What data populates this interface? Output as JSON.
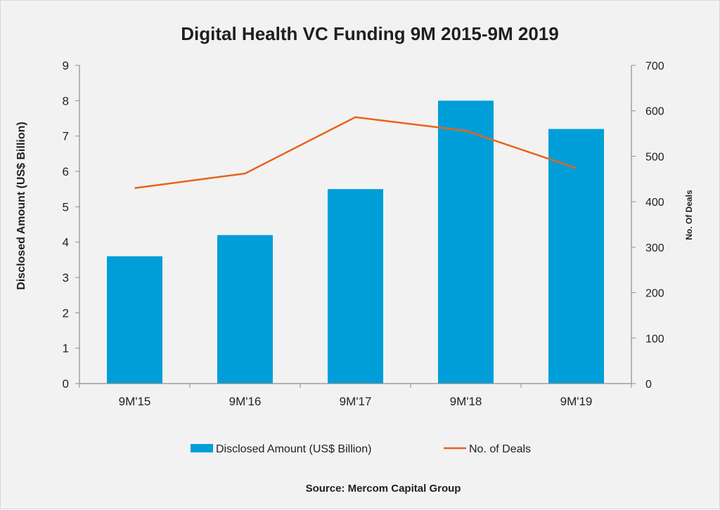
{
  "chart_data": {
    "type": "bar",
    "title": "Digital Health VC Funding 9M 2015-9M 2019",
    "categories": [
      "9M'15",
      "9M'16",
      "9M'17",
      "9M'18",
      "9M'19"
    ],
    "series": [
      {
        "name": "Disclosed Amount (US$ Billion)",
        "type": "bar",
        "axis": "left",
        "values": [
          3.6,
          4.2,
          5.5,
          8.0,
          7.2
        ],
        "color": "#009ed8"
      },
      {
        "name": "No. of Deals",
        "type": "line",
        "axis": "right",
        "values": [
          430,
          462,
          586,
          556,
          474
        ],
        "color": "#e8631c"
      }
    ],
    "ylabel": "Disclosed Amount (US$ Billion)",
    "ylabel_right": "No. Of Deals",
    "ylim": [
      0,
      9
    ],
    "ylim_right": [
      0,
      700
    ],
    "yticks": [
      "0",
      "1",
      "2",
      "3",
      "4",
      "5",
      "6",
      "7",
      "8",
      "9"
    ],
    "yticks_right": [
      "0",
      "100",
      "200",
      "300",
      "400",
      "500",
      "600",
      "700"
    ],
    "grid": false,
    "legend_position": "bottom",
    "source": "Source: Mercom Capital Group"
  }
}
